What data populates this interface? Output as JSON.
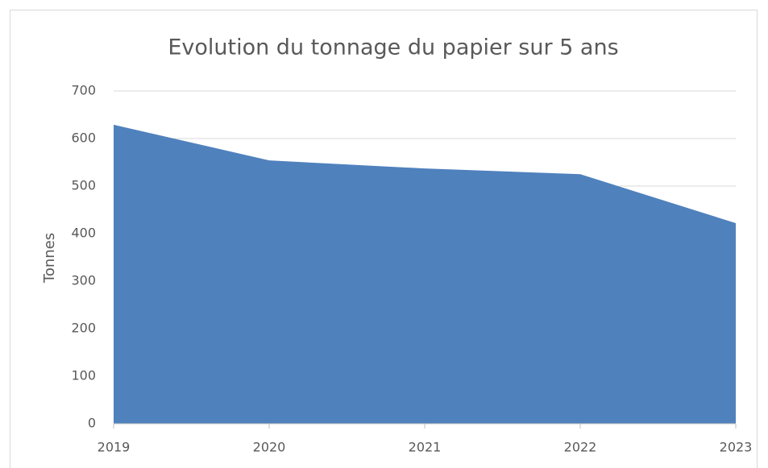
{
  "chart_data": {
    "type": "area",
    "title": "Evolution du tonnage du papier sur 5 ans",
    "y_label": "Tonnes",
    "categories": [
      "2019",
      "2020",
      "2021",
      "2022",
      "2023"
    ],
    "values": [
      629,
      554,
      537,
      525,
      422
    ],
    "color": "#4f81bd",
    "ylim": [
      0,
      700
    ],
    "yticks": [
      0,
      100,
      200,
      300,
      400,
      500,
      600,
      700
    ],
    "grid": true
  }
}
